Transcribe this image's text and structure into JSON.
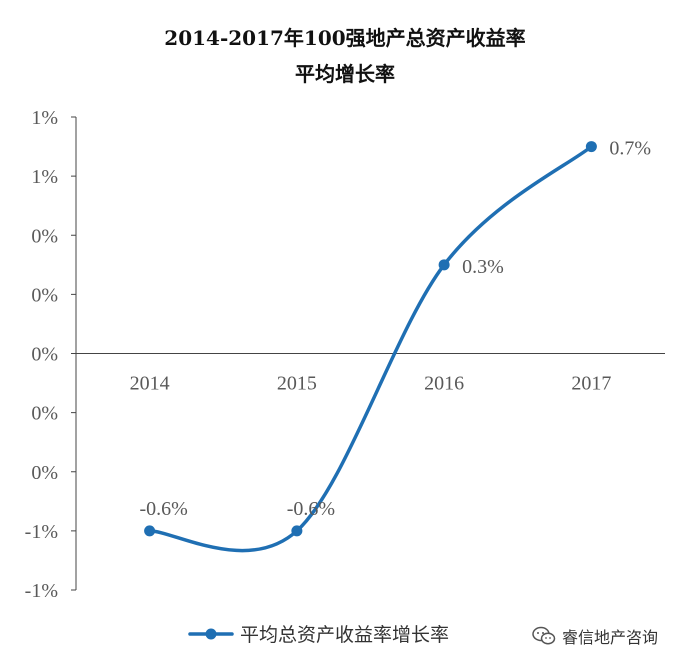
{
  "chart_data": {
    "type": "line",
    "title": [
      "2014-2017年100强地产总资产收益率",
      "平均增长率"
    ],
    "categories": [
      "2014",
      "2015",
      "2016",
      "2017"
    ],
    "series": [
      {
        "name": "平均总资产收益率增长率",
        "values": [
          -0.6,
          -0.6,
          0.3,
          0.7
        ],
        "labels": [
          "-0.6%",
          "-0.6%",
          "0.3%",
          "0.7%"
        ]
      }
    ],
    "y_tick_labels": [
      "1%",
      "1%",
      "0%",
      "0%",
      "0%",
      "0%",
      "0%",
      "-1%",
      "-1%"
    ],
    "ylim": [
      -0.8,
      0.8
    ],
    "y_tick_step": 0.2,
    "smooth": true,
    "grid": false,
    "legend_position": "bottom",
    "colors": {
      "series": "#1f6fb3",
      "axis": "#444444",
      "text": "#595959"
    }
  },
  "watermark": {
    "text": "睿信地产咨询",
    "icon": "wechat-icon"
  }
}
